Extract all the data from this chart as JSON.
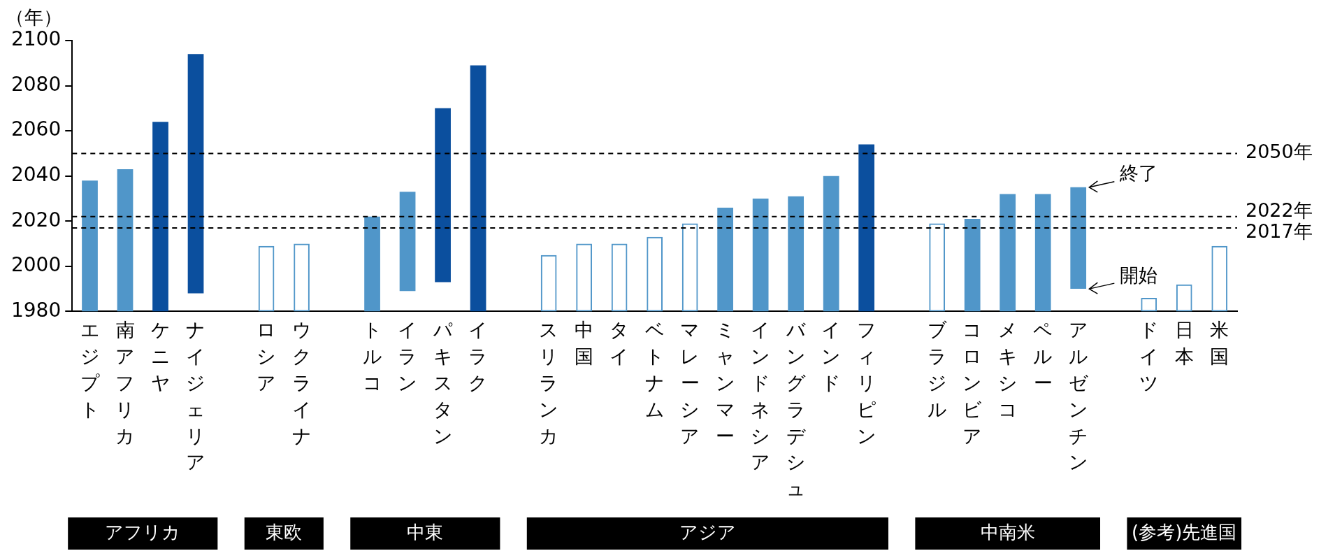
{
  "chart_data": {
    "type": "bar",
    "ylabel": "（年）",
    "categories": [
      "エジプト",
      "南アフリカ",
      "ケニヤ",
      "ナイジェリア",
      null,
      "ロシア",
      "ウクライナ",
      null,
      "トルコ",
      "イラン",
      "パキスタン",
      "イラク",
      null,
      "スリランカ",
      "中国",
      "タイ",
      "ベトナム",
      "マレーシア",
      "ミャンマー",
      "インドネシア",
      "バングラデシュ",
      "インド",
      "フィリピン",
      null,
      "ブラジル",
      "コロンビア",
      "メキシコ",
      "ペルー",
      "アルゼンチン",
      null,
      "ドイツ",
      "日本",
      "米国"
    ],
    "series": [
      {
        "color": "#5096c9",
        "values": [
          58,
          63,
          null,
          null,
          null,
          null,
          null,
          null,
          42,
          44,
          null,
          null,
          null,
          null,
          null,
          null,
          null,
          null,
          46,
          50,
          51,
          60,
          null,
          null,
          null,
          41,
          52,
          52,
          45,
          null,
          null,
          null,
          null
        ],
        "base": [
          1980,
          1980,
          null,
          null,
          null,
          null,
          null,
          null,
          1980,
          1989,
          null,
          null,
          null,
          null,
          null,
          null,
          null,
          null,
          1980,
          1980,
          1980,
          1980,
          null,
          null,
          null,
          1980,
          1980,
          1980,
          1990,
          null,
          null,
          null,
          null
        ]
      },
      {
        "color": "#0b4f9e",
        "values": [
          null,
          null,
          84,
          106,
          null,
          null,
          null,
          null,
          null,
          null,
          77,
          109,
          null,
          null,
          null,
          null,
          null,
          null,
          null,
          null,
          null,
          null,
          74,
          null,
          null,
          null,
          null,
          null,
          null,
          null,
          null,
          null,
          null
        ],
        "base": [
          null,
          null,
          1980,
          1988,
          null,
          null,
          null,
          null,
          null,
          null,
          1993,
          1980,
          null,
          null,
          null,
          null,
          null,
          null,
          null,
          null,
          null,
          null,
          1980,
          null,
          null,
          null,
          null,
          null,
          null,
          null,
          null,
          null,
          null
        ]
      },
      {
        "color": "#5096c9",
        "values": [
          null,
          null,
          null,
          null,
          null,
          29,
          30,
          null,
          null,
          null,
          null,
          null,
          null,
          25,
          30,
          30,
          33,
          39,
          null,
          null,
          null,
          null,
          null,
          null,
          39,
          null,
          null,
          null,
          null,
          null,
          6,
          12,
          29
        ],
        "base": [
          null,
          null,
          null,
          null,
          null,
          1980,
          1980,
          null,
          null,
          null,
          null,
          null,
          null,
          1980,
          1980,
          1980,
          1980,
          1980,
          null,
          null,
          null,
          null,
          null,
          null,
          1980,
          null,
          null,
          null,
          null,
          null,
          1980,
          1980,
          1980
        ]
      }
    ],
    "ylim": [
      1980,
      2100
    ],
    "yticks": [
      1980,
      2000,
      2020,
      2040,
      2060,
      2080,
      2100
    ],
    "grid": false,
    "legend": false,
    "ref_lines": [
      {
        "axis": "y",
        "value": 2050,
        "label": "2050年",
        "line_style": "dashed"
      },
      {
        "axis": "y",
        "value": 2022,
        "label": "2022年",
        "line_style": "dashed"
      },
      {
        "axis": "y",
        "value": 2017,
        "label": "2017年",
        "line_style": "dashed"
      }
    ],
    "annotations": [
      "アフリカ",
      "東欧",
      "中東",
      "アジア",
      "中南米",
      "(参考)先進国",
      {
        "text": "終了",
        "x": "アルゼンチン",
        "y": 2035
      },
      {
        "text": "開始",
        "x": "アルゼンチン",
        "y": 1990
      }
    ]
  }
}
